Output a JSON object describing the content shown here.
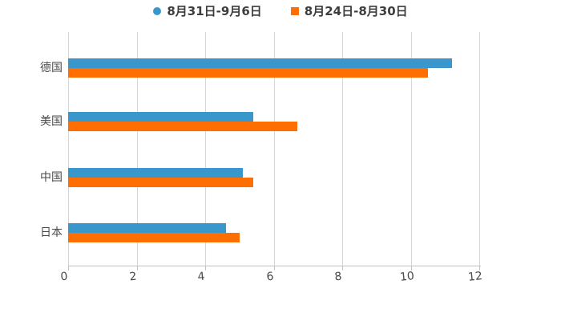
{
  "chart_data": {
    "type": "bar",
    "orientation": "horizontal",
    "title": "",
    "xlabel": "",
    "ylabel": "",
    "categories": [
      "德国",
      "美国",
      "中国",
      "日本"
    ],
    "series": [
      {
        "name": "8月31日-9月6日",
        "color": "#3a97cb",
        "marker": "circle",
        "values": [
          11.2,
          5.4,
          5.1,
          4.6
        ]
      },
      {
        "name": "8月24日-8月30日",
        "color": "#ff6e00",
        "marker": "square",
        "values": [
          10.5,
          6.7,
          5.4,
          5.0
        ]
      }
    ],
    "xlim": [
      0,
      12
    ],
    "xticks": [
      0,
      2,
      4,
      6,
      8,
      10,
      12
    ],
    "grid": true,
    "legend_position": "top",
    "colors": {
      "grid_line": "#d6d6d6",
      "axis_line": "#c2c2c2",
      "tick_label": "#4a4a4a",
      "category_label": "#4a4a4a",
      "legend_text": "#3d3d3d",
      "background": "#ffffff"
    }
  }
}
